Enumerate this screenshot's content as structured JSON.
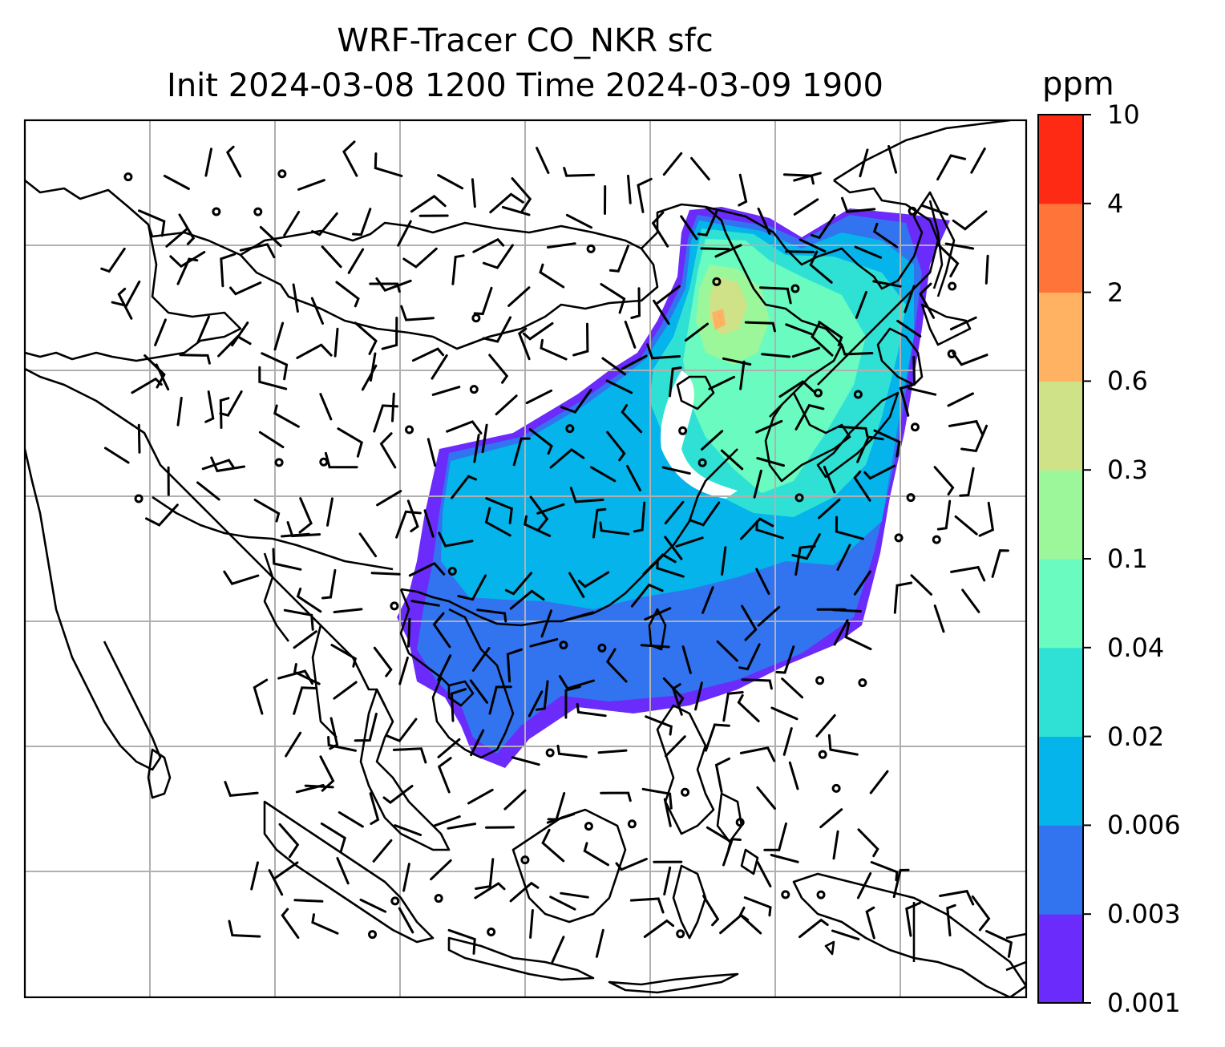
{
  "title": {
    "line1": "WRF-Tracer CO_NKR sfc",
    "line2": "Init 2024-03-08 1200 Time 2024-03-09 1900"
  },
  "colorbar": {
    "unit": "ppm",
    "levels": [
      "0.001",
      "0.003",
      "0.006",
      "0.02",
      "0.04",
      "0.1",
      "0.3",
      "0.6",
      "2",
      "4",
      "10"
    ],
    "colors": [
      "#6a2bfb",
      "#3273f0",
      "#04b4ea",
      "#2fe1d5",
      "#69fbbf",
      "#9cf79b",
      "#cfe288",
      "#ffb261",
      "#ff7438",
      "#ff2a14"
    ]
  },
  "map": {
    "gridlines": true,
    "gridline_color": "#b0b0b0",
    "coastline_color": "#000000",
    "wind_barbs": true
  }
}
